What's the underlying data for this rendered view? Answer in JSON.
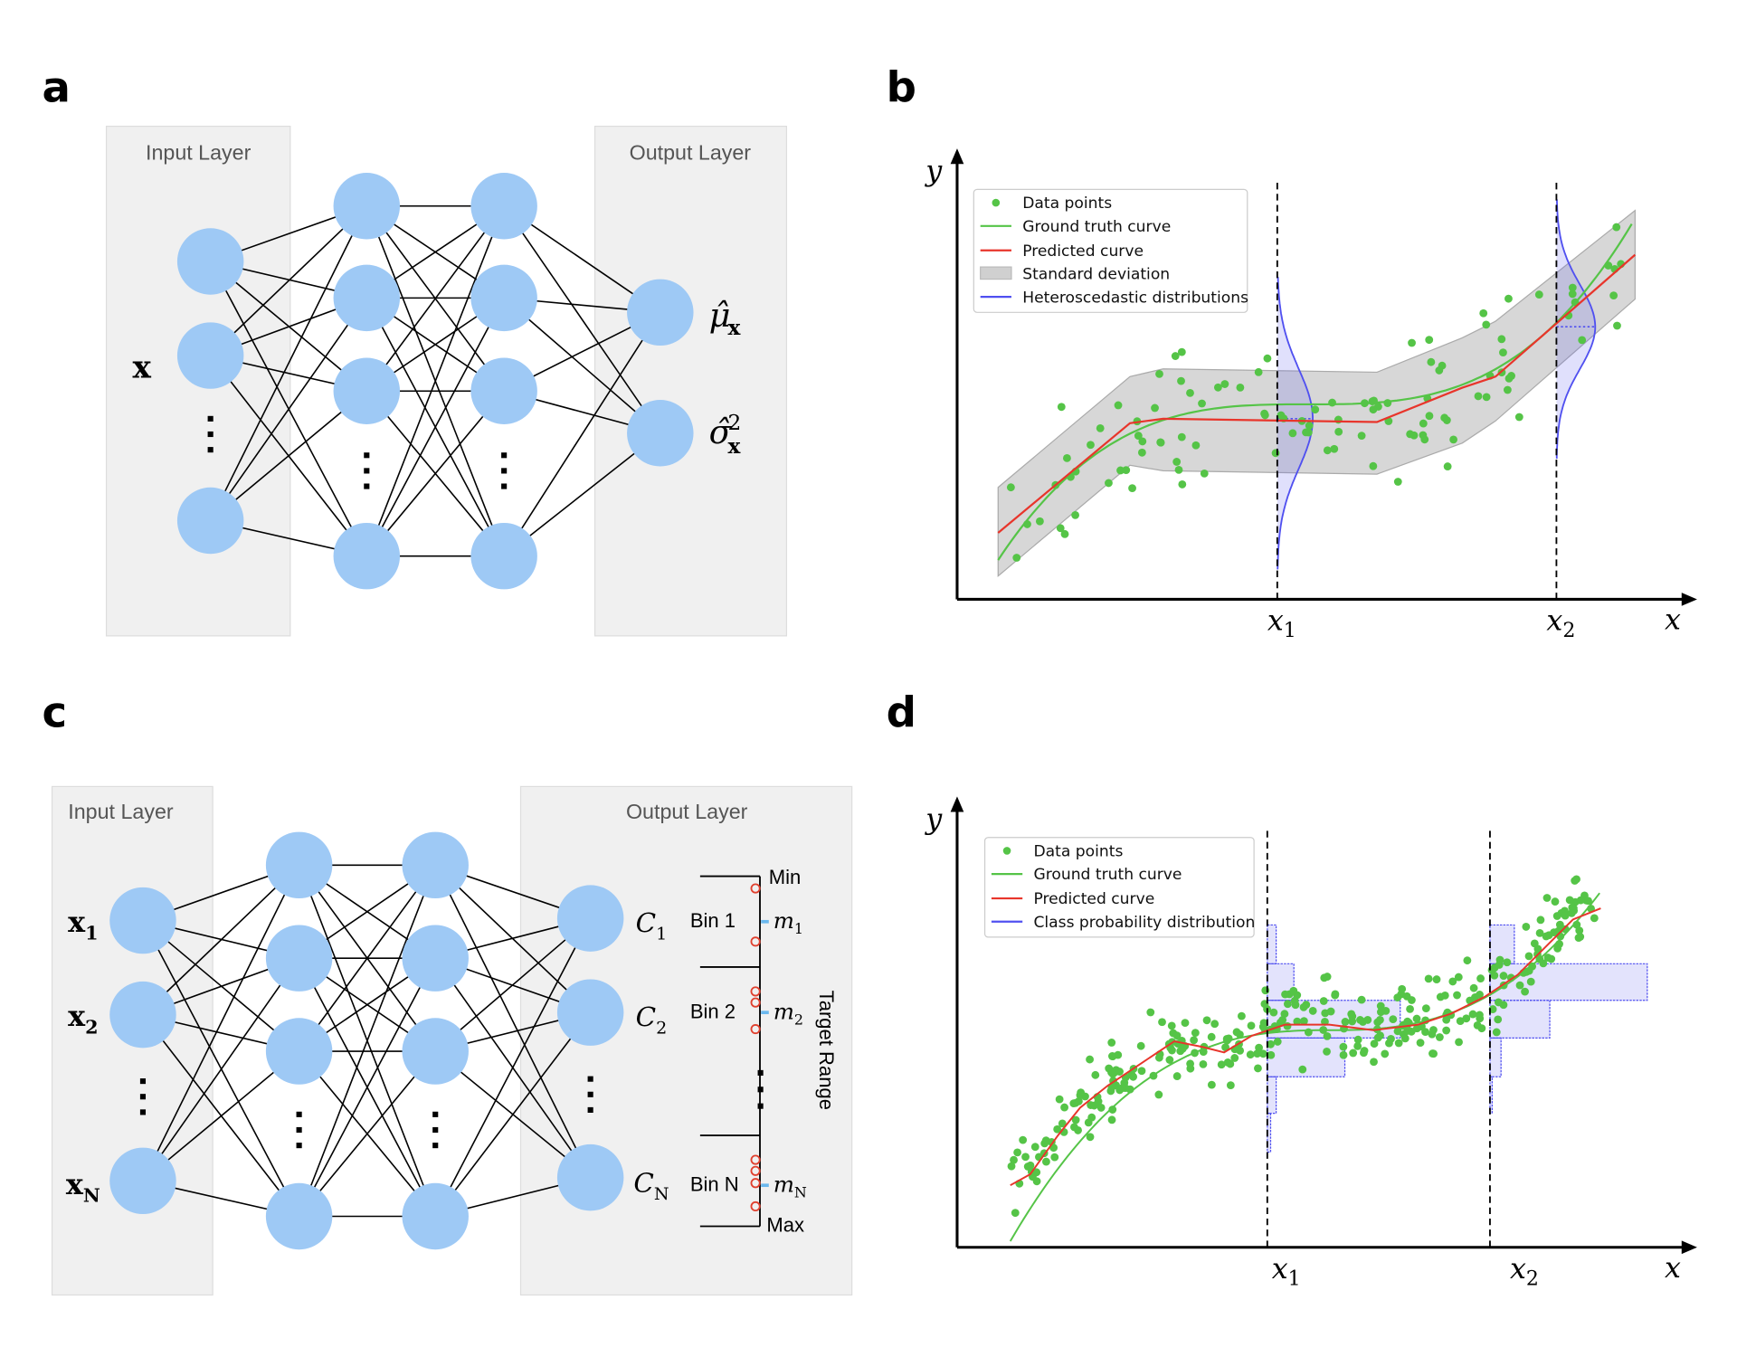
{
  "colors": {
    "node": "#9ec9f5",
    "layer_box": "#f0f0f0",
    "data_points": "#55c447",
    "ground_truth": "#55c447",
    "predicted": "#e8352b",
    "std_band": "#bdbdbd",
    "distribution": "#5050f0",
    "bin_marker": "#e0402e",
    "bin_mid": "#6ab8ee"
  },
  "panel_a": {
    "label": "a",
    "input_title": "Input Layer",
    "output_title": "Output Layer",
    "input_symbol": "x",
    "output_mu": "μ̂",
    "output_sigma": "σ̂",
    "output_sub": "x",
    "output_sup": "2"
  },
  "panel_b": {
    "label": "b",
    "y_label": "y",
    "x_label": "x",
    "x1": "x",
    "x1_sub": "1",
    "x2": "x",
    "x2_sub": "2",
    "legend": [
      "Data points",
      "Ground truth curve",
      "Predicted curve",
      "Standard deviation",
      "Heteroscedastic distributions"
    ]
  },
  "panel_c": {
    "label": "c",
    "input_title": "Input Layer",
    "output_title": "Output Layer",
    "inputs": [
      {
        "base": "x",
        "sub": "1"
      },
      {
        "base": "x",
        "sub": "2"
      },
      {
        "base": "x",
        "sub": "N"
      }
    ],
    "outputs": [
      {
        "base": "C",
        "sub": "1"
      },
      {
        "base": "C",
        "sub": "2"
      },
      {
        "base": "C",
        "sub": "N"
      }
    ],
    "bins": [
      {
        "name": "Bin 1",
        "m": "m",
        "m_sub": "1"
      },
      {
        "name": "Bin 2",
        "m": "m",
        "m_sub": "2"
      },
      {
        "name": "Bin N",
        "m": "m",
        "m_sub": "N"
      }
    ],
    "min_label": "Min",
    "max_label": "Max",
    "range_label": "Target Range"
  },
  "panel_d": {
    "label": "d",
    "y_label": "y",
    "x_label": "x",
    "x1": "x",
    "x1_sub": "1",
    "x2": "x",
    "x2_sub": "2",
    "legend": [
      "Data points",
      "Ground truth curve",
      "Predicted curve",
      "Class probability distribution"
    ]
  }
}
